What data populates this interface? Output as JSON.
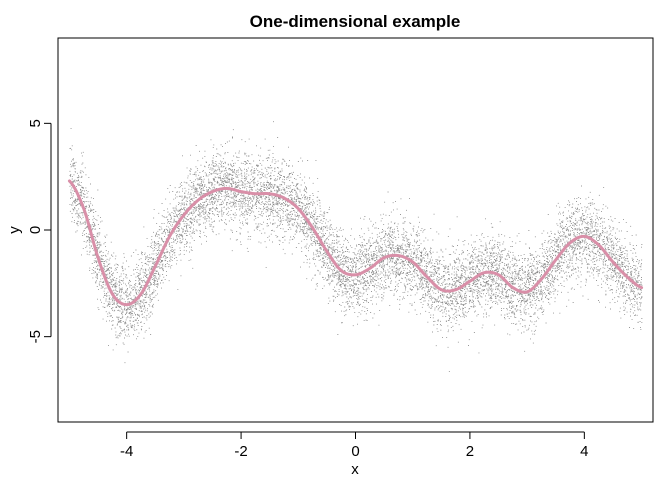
{
  "chart_data": {
    "type": "scatter",
    "title": "One-dimensional example",
    "xlabel": "x",
    "ylabel": "y",
    "xlim": [
      -5.2,
      5.2
    ],
    "ylim": [
      -9,
      9
    ],
    "x_ticks": [
      -4,
      -2,
      0,
      2,
      4
    ],
    "y_ticks": [
      -5,
      0,
      5
    ],
    "grid": false,
    "legend": "none",
    "colors": {
      "points": "#8c8c8c",
      "fit_line": "#d98fa8",
      "axes": "#000000"
    },
    "series": [
      {
        "kind": "points",
        "n_points_approx": 10000,
        "x_range": [
          -5,
          5
        ],
        "noise_sd_approx": 0.9
      },
      {
        "kind": "smooth_fit",
        "x": [
          -5,
          -4.75,
          -4.5,
          -4.25,
          -4.0,
          -3.75,
          -3.5,
          -3.25,
          -3.0,
          -2.75,
          -2.5,
          -2.25,
          -2.0,
          -1.75,
          -1.5,
          -1.25,
          -1.0,
          -0.75,
          -0.5,
          -0.25,
          0.0,
          0.25,
          0.5,
          0.75,
          1.0,
          1.25,
          1.5,
          1.75,
          2.0,
          2.25,
          2.5,
          2.75,
          3.0,
          3.25,
          3.5,
          3.75,
          4.0,
          4.25,
          4.5,
          4.75,
          5.0
        ],
        "y": [
          2.3,
          1.0,
          -1.3,
          -3.0,
          -3.5,
          -3.0,
          -1.7,
          -0.3,
          0.7,
          1.4,
          1.8,
          1.95,
          1.8,
          1.7,
          1.7,
          1.5,
          1.0,
          0.1,
          -1.0,
          -1.9,
          -2.1,
          -1.8,
          -1.3,
          -1.2,
          -1.5,
          -2.2,
          -2.8,
          -2.8,
          -2.4,
          -2.0,
          -2.1,
          -2.7,
          -2.9,
          -2.3,
          -1.4,
          -0.6,
          -0.3,
          -0.7,
          -1.5,
          -2.2,
          -2.7
        ]
      }
    ]
  }
}
